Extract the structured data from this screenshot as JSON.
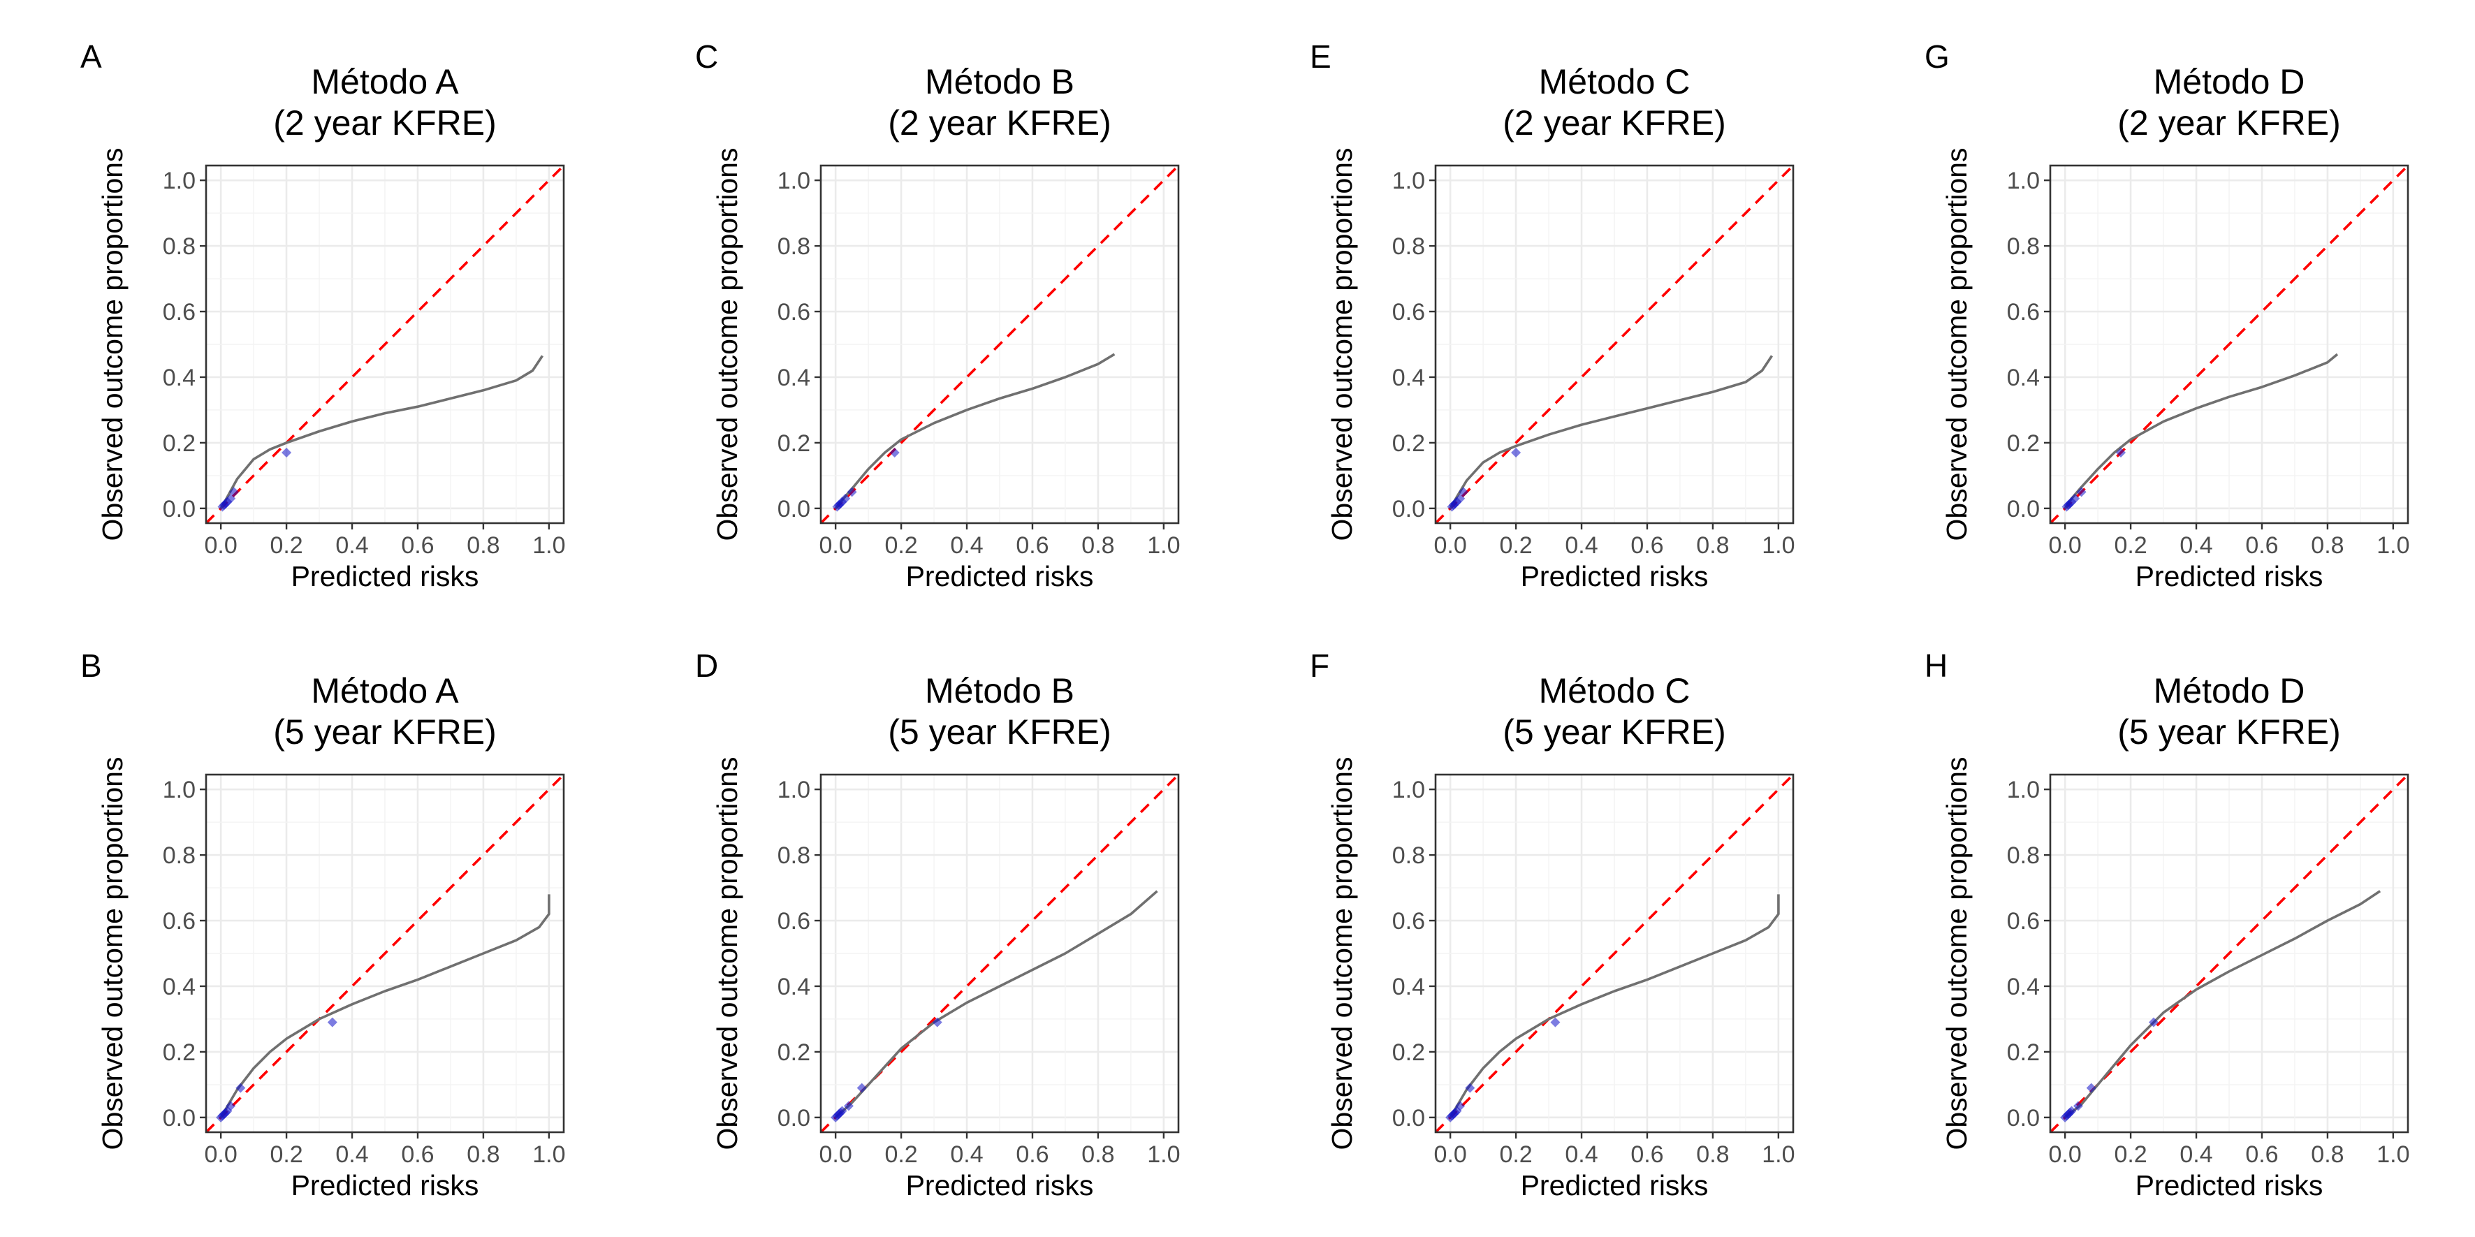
{
  "chart_data": [
    {
      "type": "line",
      "panel_tag": "A",
      "title": [
        "Método A",
        "(2 year KFRE)"
      ],
      "xlabel": "Predicted risks",
      "ylabel": "Observed outcome proportions",
      "xlim": [
        0,
        1
      ],
      "ylim": [
        0,
        1
      ],
      "xticks": [
        "0.0",
        "0.2",
        "0.4",
        "0.6",
        "0.8",
        "1.0"
      ],
      "yticks": [
        "0.0",
        "0.2",
        "0.4",
        "0.6",
        "0.8",
        "1.0"
      ],
      "grid": true,
      "reference_line": {
        "color": "#ff0000",
        "style": "dashed",
        "from": [
          0,
          0
        ],
        "to": [
          1,
          1
        ]
      },
      "curve": {
        "color": "#707070",
        "x": [
          0.0,
          0.02,
          0.05,
          0.1,
          0.15,
          0.2,
          0.3,
          0.4,
          0.5,
          0.6,
          0.7,
          0.8,
          0.9,
          0.95,
          0.98
        ],
        "y": [
          0.0,
          0.035,
          0.09,
          0.15,
          0.18,
          0.2,
          0.235,
          0.265,
          0.29,
          0.31,
          0.335,
          0.36,
          0.39,
          0.42,
          0.465
        ]
      },
      "points": {
        "color": "#1010c8",
        "x": [
          0.005,
          0.01,
          0.015,
          0.02,
          0.03,
          0.04,
          0.2
        ],
        "y": [
          0.005,
          0.01,
          0.015,
          0.02,
          0.03,
          0.05,
          0.17
        ]
      }
    },
    {
      "type": "line",
      "panel_tag": "B",
      "title": [
        "Método A",
        "(5 year KFRE)"
      ],
      "xlabel": "Predicted risks",
      "ylabel": "Observed outcome proportions",
      "xlim": [
        0,
        1
      ],
      "ylim": [
        0,
        1
      ],
      "xticks": [
        "0.0",
        "0.2",
        "0.4",
        "0.6",
        "0.8",
        "1.0"
      ],
      "yticks": [
        "0.0",
        "0.2",
        "0.4",
        "0.6",
        "0.8",
        "1.0"
      ],
      "grid": true,
      "reference_line": {
        "color": "#ff0000",
        "style": "dashed",
        "from": [
          0,
          0
        ],
        "to": [
          1,
          1
        ]
      },
      "curve": {
        "color": "#707070",
        "x": [
          0.0,
          0.05,
          0.1,
          0.15,
          0.2,
          0.3,
          0.4,
          0.5,
          0.6,
          0.7,
          0.8,
          0.9,
          0.97,
          1.0,
          1.0
        ],
        "y": [
          0.0,
          0.085,
          0.15,
          0.2,
          0.24,
          0.3,
          0.345,
          0.385,
          0.42,
          0.46,
          0.5,
          0.54,
          0.58,
          0.62,
          0.68
        ]
      },
      "points": {
        "color": "#1010c8",
        "x": [
          0.0,
          0.005,
          0.01,
          0.015,
          0.02,
          0.03,
          0.06,
          0.34
        ],
        "y": [
          0.0,
          0.005,
          0.01,
          0.015,
          0.02,
          0.035,
          0.09,
          0.29
        ]
      }
    },
    {
      "type": "line",
      "panel_tag": "C",
      "title": [
        "Método B",
        "(2 year KFRE)"
      ],
      "xlabel": "Predicted risks",
      "ylabel": "Observed outcome proportions",
      "xlim": [
        0,
        1
      ],
      "ylim": [
        0,
        1
      ],
      "xticks": [
        "0.0",
        "0.2",
        "0.4",
        "0.6",
        "0.8",
        "1.0"
      ],
      "yticks": [
        "0.0",
        "0.2",
        "0.4",
        "0.6",
        "0.8",
        "1.0"
      ],
      "grid": true,
      "reference_line": {
        "color": "#ff0000",
        "style": "dashed",
        "from": [
          0,
          0
        ],
        "to": [
          1,
          1
        ]
      },
      "curve": {
        "color": "#707070",
        "x": [
          0.0,
          0.02,
          0.05,
          0.1,
          0.15,
          0.2,
          0.3,
          0.4,
          0.5,
          0.6,
          0.7,
          0.8,
          0.85
        ],
        "y": [
          0.0,
          0.025,
          0.06,
          0.12,
          0.17,
          0.21,
          0.26,
          0.3,
          0.335,
          0.365,
          0.4,
          0.44,
          0.47
        ]
      },
      "points": {
        "color": "#1010c8",
        "x": [
          0.005,
          0.01,
          0.015,
          0.02,
          0.03,
          0.05,
          0.18
        ],
        "y": [
          0.005,
          0.01,
          0.015,
          0.02,
          0.03,
          0.05,
          0.17
        ]
      }
    },
    {
      "type": "line",
      "panel_tag": "D",
      "title": [
        "Método B",
        "(5 year KFRE)"
      ],
      "xlabel": "Predicted risks",
      "ylabel": "Observed outcome proportions",
      "xlim": [
        0,
        1
      ],
      "ylim": [
        0,
        1
      ],
      "xticks": [
        "0.0",
        "0.2",
        "0.4",
        "0.6",
        "0.8",
        "1.0"
      ],
      "yticks": [
        "0.0",
        "0.2",
        "0.4",
        "0.6",
        "0.8",
        "1.0"
      ],
      "grid": true,
      "reference_line": {
        "color": "#ff0000",
        "style": "dashed",
        "from": [
          0,
          0
        ],
        "to": [
          1,
          1
        ]
      },
      "curve": {
        "color": "#707070",
        "x": [
          0.0,
          0.05,
          0.1,
          0.2,
          0.3,
          0.4,
          0.5,
          0.6,
          0.7,
          0.8,
          0.9,
          0.98
        ],
        "y": [
          0.0,
          0.045,
          0.1,
          0.21,
          0.29,
          0.35,
          0.4,
          0.45,
          0.5,
          0.56,
          0.62,
          0.69
        ]
      },
      "points": {
        "color": "#1010c8",
        "x": [
          0.0,
          0.005,
          0.01,
          0.015,
          0.02,
          0.04,
          0.08,
          0.31
        ],
        "y": [
          0.0,
          0.005,
          0.01,
          0.015,
          0.02,
          0.035,
          0.09,
          0.29
        ]
      }
    },
    {
      "type": "line",
      "panel_tag": "E",
      "title": [
        "Método C",
        "(2 year KFRE)"
      ],
      "xlabel": "Predicted risks",
      "ylabel": "Observed outcome proportions",
      "xlim": [
        0,
        1
      ],
      "ylim": [
        0,
        1
      ],
      "xticks": [
        "0.0",
        "0.2",
        "0.4",
        "0.6",
        "0.8",
        "1.0"
      ],
      "yticks": [
        "0.0",
        "0.2",
        "0.4",
        "0.6",
        "0.8",
        "1.0"
      ],
      "grid": true,
      "reference_line": {
        "color": "#ff0000",
        "style": "dashed",
        "from": [
          0,
          0
        ],
        "to": [
          1,
          1
        ]
      },
      "curve": {
        "color": "#707070",
        "x": [
          0.0,
          0.02,
          0.05,
          0.1,
          0.15,
          0.2,
          0.3,
          0.4,
          0.5,
          0.6,
          0.7,
          0.8,
          0.9,
          0.95,
          0.98
        ],
        "y": [
          0.0,
          0.035,
          0.085,
          0.14,
          0.17,
          0.19,
          0.225,
          0.255,
          0.28,
          0.305,
          0.33,
          0.355,
          0.385,
          0.42,
          0.465
        ]
      },
      "points": {
        "color": "#1010c8",
        "x": [
          0.005,
          0.01,
          0.015,
          0.02,
          0.03,
          0.04,
          0.2
        ],
        "y": [
          0.005,
          0.01,
          0.015,
          0.02,
          0.03,
          0.05,
          0.17
        ]
      }
    },
    {
      "type": "line",
      "panel_tag": "F",
      "title": [
        "Método C",
        "(5 year KFRE)"
      ],
      "xlabel": "Predicted risks",
      "ylabel": "Observed outcome proportions",
      "xlim": [
        0,
        1
      ],
      "ylim": [
        0,
        1
      ],
      "xticks": [
        "0.0",
        "0.2",
        "0.4",
        "0.6",
        "0.8",
        "1.0"
      ],
      "yticks": [
        "0.0",
        "0.2",
        "0.4",
        "0.6",
        "0.8",
        "1.0"
      ],
      "grid": true,
      "reference_line": {
        "color": "#ff0000",
        "style": "dashed",
        "from": [
          0,
          0
        ],
        "to": [
          1,
          1
        ]
      },
      "curve": {
        "color": "#707070",
        "x": [
          0.0,
          0.05,
          0.1,
          0.15,
          0.2,
          0.3,
          0.4,
          0.5,
          0.6,
          0.7,
          0.8,
          0.9,
          0.97,
          1.0,
          1.0
        ],
        "y": [
          0.0,
          0.085,
          0.15,
          0.2,
          0.24,
          0.3,
          0.345,
          0.385,
          0.42,
          0.46,
          0.5,
          0.54,
          0.58,
          0.62,
          0.68
        ]
      },
      "points": {
        "color": "#1010c8",
        "x": [
          0.0,
          0.005,
          0.01,
          0.015,
          0.02,
          0.03,
          0.06,
          0.32
        ],
        "y": [
          0.0,
          0.005,
          0.01,
          0.015,
          0.02,
          0.035,
          0.09,
          0.29
        ]
      }
    },
    {
      "type": "line",
      "panel_tag": "G",
      "title": [
        "Método D",
        "(2 year KFRE)"
      ],
      "xlabel": "Predicted risks",
      "ylabel": "Observed outcome proportions",
      "xlim": [
        0,
        1
      ],
      "ylim": [
        0,
        1
      ],
      "xticks": [
        "0.0",
        "0.2",
        "0.4",
        "0.6",
        "0.8",
        "1.0"
      ],
      "yticks": [
        "0.0",
        "0.2",
        "0.4",
        "0.6",
        "0.8",
        "1.0"
      ],
      "grid": true,
      "reference_line": {
        "color": "#ff0000",
        "style": "dashed",
        "from": [
          0,
          0
        ],
        "to": [
          1,
          1
        ]
      },
      "curve": {
        "color": "#707070",
        "x": [
          0.0,
          0.02,
          0.05,
          0.1,
          0.15,
          0.2,
          0.3,
          0.4,
          0.5,
          0.6,
          0.7,
          0.8,
          0.83
        ],
        "y": [
          0.0,
          0.03,
          0.065,
          0.12,
          0.17,
          0.21,
          0.265,
          0.305,
          0.34,
          0.37,
          0.405,
          0.445,
          0.47
        ]
      },
      "points": {
        "color": "#1010c8",
        "x": [
          0.005,
          0.01,
          0.015,
          0.02,
          0.03,
          0.05,
          0.17
        ],
        "y": [
          0.005,
          0.01,
          0.015,
          0.02,
          0.03,
          0.05,
          0.17
        ]
      }
    },
    {
      "type": "line",
      "panel_tag": "H",
      "title": [
        "Método D",
        "(5 year KFRE)"
      ],
      "xlabel": "Predicted risks",
      "ylabel": "Observed outcome proportions",
      "xlim": [
        0,
        1
      ],
      "ylim": [
        0,
        1
      ],
      "xticks": [
        "0.0",
        "0.2",
        "0.4",
        "0.6",
        "0.8",
        "1.0"
      ],
      "yticks": [
        "0.0",
        "0.2",
        "0.4",
        "0.6",
        "0.8",
        "1.0"
      ],
      "grid": true,
      "reference_line": {
        "color": "#ff0000",
        "style": "dashed",
        "from": [
          0,
          0
        ],
        "to": [
          1,
          1
        ]
      },
      "curve": {
        "color": "#707070",
        "x": [
          0.0,
          0.05,
          0.1,
          0.2,
          0.3,
          0.4,
          0.5,
          0.6,
          0.7,
          0.8,
          0.9,
          0.96
        ],
        "y": [
          0.0,
          0.04,
          0.1,
          0.22,
          0.32,
          0.39,
          0.445,
          0.495,
          0.545,
          0.6,
          0.65,
          0.69
        ]
      },
      "points": {
        "color": "#1010c8",
        "x": [
          0.0,
          0.005,
          0.01,
          0.015,
          0.02,
          0.04,
          0.08,
          0.27
        ],
        "y": [
          0.0,
          0.005,
          0.01,
          0.015,
          0.02,
          0.035,
          0.09,
          0.29
        ]
      }
    }
  ]
}
